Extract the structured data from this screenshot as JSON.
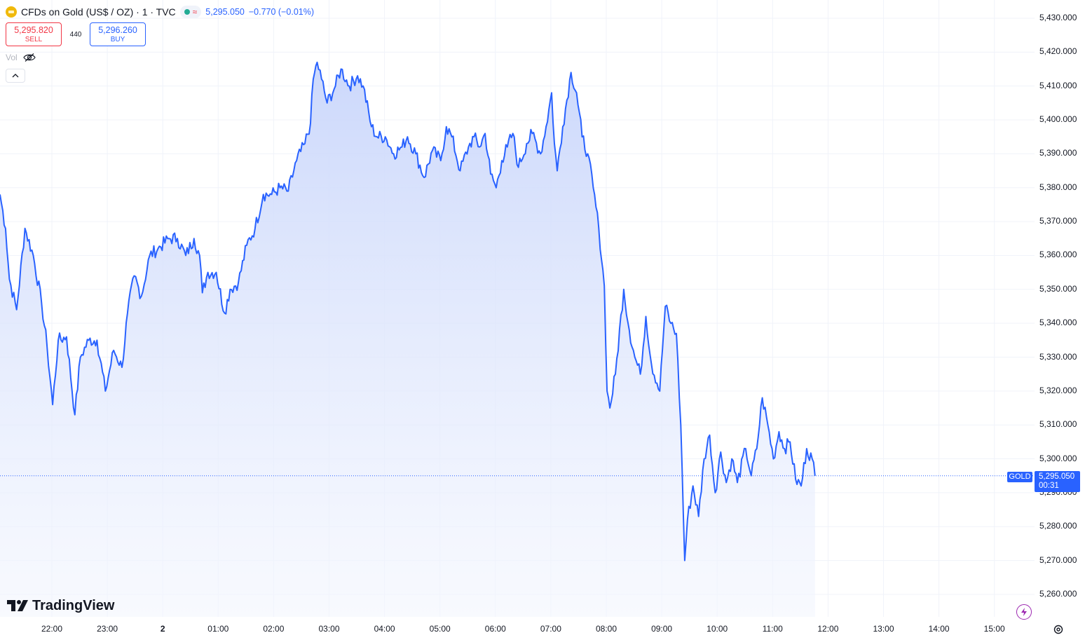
{
  "header": {
    "title": "CFDs on Gold (US$ / OZ) · 1 · TVC",
    "last_price": "5,295.050",
    "change": "−0.770 (−0.01%)",
    "status_wave": "≈"
  },
  "trade": {
    "sell_price": "5,295.820",
    "sell_label": "SELL",
    "spread": "440",
    "buy_price": "5,296.260",
    "buy_label": "BUY"
  },
  "volume": {
    "label": "Vol"
  },
  "price_tag": {
    "symbol": "GOLD",
    "price": "5,295.050",
    "countdown": "00:31"
  },
  "branding": {
    "logo_text": "TradingView"
  },
  "colors": {
    "line": "#2962ff",
    "fill_top": "#c9d6fb",
    "fill_bottom": "#f3f6fe",
    "sell": "#f23645",
    "buy": "#2962ff",
    "grid": "#f0f3fa"
  },
  "chart_data": {
    "type": "area",
    "y_ticks": [
      "5,430.000",
      "5,420.000",
      "5,410.000",
      "5,400.000",
      "5,390.000",
      "5,380.000",
      "5,370.000",
      "5,360.000",
      "5,350.000",
      "5,340.000",
      "5,330.000",
      "5,320.000",
      "5,310.000",
      "5,300.000",
      "5,290.000",
      "5,280.000",
      "5,270.000",
      "5,260.000"
    ],
    "x_ticks": [
      "22:00",
      "23:00",
      "2",
      "01:00",
      "02:00",
      "03:00",
      "04:00",
      "05:00",
      "06:00",
      "07:00",
      "08:00",
      "09:00",
      "10:00",
      "11:00",
      "12:00",
      "13:00",
      "14:00",
      "15:00"
    ],
    "ylim": [
      5258,
      5433
    ],
    "x_unit": "hours since 21:05",
    "points": [
      [
        0.0,
        5378
      ],
      [
        0.1,
        5368
      ],
      [
        0.17,
        5353
      ],
      [
        0.3,
        5344
      ],
      [
        0.45,
        5368
      ],
      [
        0.6,
        5360
      ],
      [
        0.75,
        5346
      ],
      [
        0.85,
        5333
      ],
      [
        0.95,
        5316
      ],
      [
        1.05,
        5335
      ],
      [
        1.2,
        5336
      ],
      [
        1.35,
        5313
      ],
      [
        1.45,
        5330
      ],
      [
        1.6,
        5335
      ],
      [
        1.75,
        5335
      ],
      [
        1.9,
        5320
      ],
      [
        2.05,
        5332
      ],
      [
        2.2,
        5327
      ],
      [
        2.3,
        5343
      ],
      [
        2.42,
        5354
      ],
      [
        2.55,
        5348
      ],
      [
        2.7,
        5360
      ],
      [
        2.85,
        5362
      ],
      [
        3.05,
        5365
      ],
      [
        3.2,
        5365
      ],
      [
        3.35,
        5360
      ],
      [
        3.5,
        5365
      ],
      [
        3.6,
        5360
      ],
      [
        3.65,
        5349
      ],
      [
        3.75,
        5355
      ],
      [
        3.9,
        5355
      ],
      [
        4.05,
        5343
      ],
      [
        4.15,
        5350
      ],
      [
        4.3,
        5352
      ],
      [
        4.45,
        5363
      ],
      [
        4.6,
        5368
      ],
      [
        4.75,
        5378
      ],
      [
        4.9,
        5378
      ],
      [
        5.05,
        5380
      ],
      [
        5.2,
        5379
      ],
      [
        5.35,
        5388
      ],
      [
        5.5,
        5393
      ],
      [
        5.6,
        5399
      ],
      [
        5.65,
        5412
      ],
      [
        5.72,
        5417
      ],
      [
        5.8,
        5412
      ],
      [
        5.9,
        5405
      ],
      [
        6.05,
        5410
      ],
      [
        6.15,
        5415
      ],
      [
        6.3,
        5410
      ],
      [
        6.45,
        5413
      ],
      [
        6.55,
        5410
      ],
      [
        6.7,
        5398
      ],
      [
        6.8,
        5395
      ],
      [
        6.95,
        5395
      ],
      [
        7.1,
        5390
      ],
      [
        7.25,
        5392
      ],
      [
        7.35,
        5395
      ],
      [
        7.5,
        5390
      ],
      [
        7.65,
        5383
      ],
      [
        7.8,
        5391
      ],
      [
        7.95,
        5388
      ],
      [
        8.05,
        5398
      ],
      [
        8.15,
        5395
      ],
      [
        8.3,
        5385
      ],
      [
        8.45,
        5392
      ],
      [
        8.55,
        5395
      ],
      [
        8.65,
        5392
      ],
      [
        8.75,
        5396
      ],
      [
        8.85,
        5384
      ],
      [
        8.95,
        5380
      ],
      [
        9.05,
        5388
      ],
      [
        9.15,
        5392
      ],
      [
        9.25,
        5396
      ],
      [
        9.35,
        5386
      ],
      [
        9.5,
        5393
      ],
      [
        9.6,
        5396
      ],
      [
        9.75,
        5390
      ],
      [
        9.85,
        5398
      ],
      [
        9.95,
        5408
      ],
      [
        10.0,
        5393
      ],
      [
        10.05,
        5385
      ],
      [
        10.15,
        5398
      ],
      [
        10.3,
        5414
      ],
      [
        10.4,
        5408
      ],
      [
        10.5,
        5395
      ],
      [
        10.6,
        5390
      ],
      [
        10.7,
        5380
      ],
      [
        10.8,
        5368
      ],
      [
        10.9,
        5351
      ],
      [
        10.95,
        5320
      ],
      [
        11.0,
        5315
      ],
      [
        11.1,
        5325
      ],
      [
        11.25,
        5350
      ],
      [
        11.35,
        5338
      ],
      [
        11.45,
        5330
      ],
      [
        11.55,
        5325
      ],
      [
        11.65,
        5342
      ],
      [
        11.75,
        5328
      ],
      [
        11.9,
        5320
      ],
      [
        12.0,
        5345
      ],
      [
        12.1,
        5340
      ],
      [
        12.2,
        5337
      ],
      [
        12.28,
        5310
      ],
      [
        12.35,
        5270
      ],
      [
        12.4,
        5282
      ],
      [
        12.5,
        5292
      ],
      [
        12.6,
        5283
      ],
      [
        12.7,
        5300
      ],
      [
        12.8,
        5307
      ],
      [
        12.9,
        5290
      ],
      [
        13.0,
        5302
      ],
      [
        13.1,
        5293
      ],
      [
        13.2,
        5300
      ],
      [
        13.3,
        5293
      ],
      [
        13.45,
        5303
      ],
      [
        13.55,
        5295
      ],
      [
        13.65,
        5303
      ],
      [
        13.75,
        5318
      ],
      [
        13.85,
        5310
      ],
      [
        13.95,
        5300
      ],
      [
        14.05,
        5308
      ],
      [
        14.15,
        5303
      ],
      [
        14.25,
        5305
      ],
      [
        14.35,
        5294
      ],
      [
        14.45,
        5292
      ],
      [
        14.55,
        5303
      ],
      [
        14.65,
        5300
      ],
      [
        14.7,
        5295
      ]
    ]
  }
}
